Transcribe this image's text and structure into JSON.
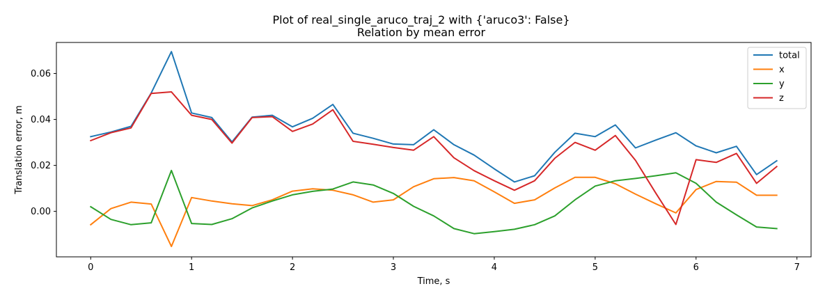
{
  "chart_data": {
    "type": "line",
    "title": "Plot of real_single_aruco_traj_2 with {'aruco3': False}",
    "subtitle": "Relation by mean error",
    "xlabel": "Time, s",
    "ylabel": "Translation error, m",
    "xlim": [
      -0.34,
      7.14
    ],
    "ylim": [
      -0.0198,
      0.0735
    ],
    "xticks": [
      0,
      1,
      2,
      3,
      4,
      5,
      6,
      7
    ],
    "yticks": [
      0.0,
      0.02,
      0.04,
      0.06
    ],
    "xtick_labels": [
      "0",
      "1",
      "2",
      "3",
      "4",
      "5",
      "6",
      "7"
    ],
    "ytick_labels": [
      "0.00",
      "0.02",
      "0.04",
      "0.06"
    ],
    "grid": false,
    "legend_position": "top-right",
    "x": [
      0,
      0.2,
      0.4,
      0.6,
      0.8,
      1.0,
      1.2,
      1.4,
      1.6,
      1.8,
      2.0,
      2.2,
      2.4,
      2.6,
      2.8,
      3.0,
      3.2,
      3.4,
      3.6,
      3.8,
      4.0,
      4.2,
      4.4,
      4.6,
      4.8,
      5.0,
      5.2,
      5.4,
      5.6,
      5.8,
      6.0,
      6.2,
      6.4,
      6.6,
      6.8
    ],
    "series": [
      {
        "name": "total",
        "color": "#1f77b4",
        "values": [
          0.0325,
          0.0345,
          0.037,
          0.0515,
          0.0695,
          0.0428,
          0.0408,
          0.0302,
          0.041,
          0.0418,
          0.0368,
          0.0405,
          0.0465,
          0.034,
          0.0318,
          0.0293,
          0.029,
          0.0355,
          0.029,
          0.0245,
          0.0185,
          0.0128,
          0.0155,
          0.0257,
          0.034,
          0.0325,
          0.0376,
          0.0276,
          0.031,
          0.0342,
          0.0285,
          0.0255,
          0.0283,
          0.016,
          0.022
        ]
      },
      {
        "name": "x",
        "color": "#ff7f0e",
        "values": [
          -0.0058,
          0.0012,
          0.004,
          0.0032,
          -0.0153,
          0.006,
          0.0045,
          0.0033,
          0.0025,
          0.005,
          0.0088,
          0.0098,
          0.0092,
          0.0072,
          0.004,
          0.005,
          0.0107,
          0.0142,
          0.0147,
          0.0133,
          0.0085,
          0.0035,
          0.005,
          0.0102,
          0.0148,
          0.0148,
          0.012,
          0.0075,
          0.0033,
          -0.0007,
          0.0095,
          0.013,
          0.0127,
          0.007,
          0.007
        ]
      },
      {
        "name": "y",
        "color": "#2ca02c",
        "values": [
          0.002,
          -0.0035,
          -0.0058,
          -0.005,
          0.0178,
          -0.0053,
          -0.0057,
          -0.0032,
          0.0015,
          0.0045,
          0.0072,
          0.0087,
          0.0097,
          0.0128,
          0.0115,
          0.0078,
          0.0022,
          -0.002,
          -0.0075,
          -0.0097,
          -0.0088,
          -0.0078,
          -0.0058,
          -0.002,
          0.005,
          0.011,
          0.0133,
          0.0143,
          0.0155,
          0.0168,
          0.0122,
          0.004,
          -0.0015,
          -0.0068,
          -0.0075
        ]
      },
      {
        "name": "z",
        "color": "#d62728",
        "values": [
          0.0308,
          0.0342,
          0.0363,
          0.0513,
          0.052,
          0.0418,
          0.04,
          0.0297,
          0.0408,
          0.0412,
          0.0348,
          0.038,
          0.0442,
          0.0305,
          0.0292,
          0.0278,
          0.0266,
          0.0325,
          0.0233,
          0.0177,
          0.0133,
          0.0092,
          0.0133,
          0.0231,
          0.03,
          0.0266,
          0.033,
          0.0222,
          0.008,
          -0.0057,
          0.0225,
          0.0213,
          0.0252,
          0.0122,
          0.0195
        ]
      }
    ]
  }
}
